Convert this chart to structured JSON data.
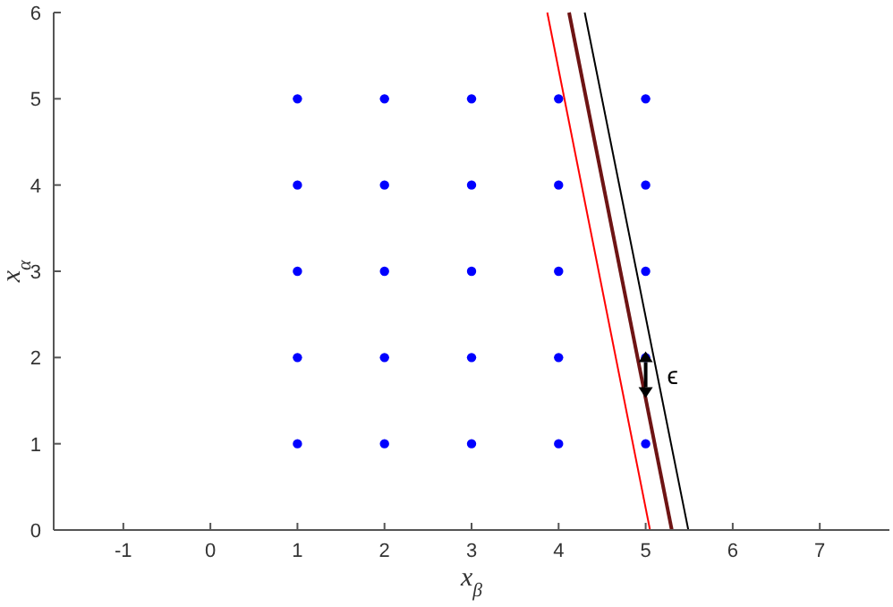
{
  "chart_data": {
    "type": "scatter",
    "xlabel": "x$_{β}$",
    "ylabel": "x$_{α}$",
    "xlim": [
      -1.8,
      7.8
    ],
    "ylim": [
      0,
      6
    ],
    "xticks": [
      -1,
      0,
      1,
      2,
      3,
      4,
      5,
      6,
      7
    ],
    "yticks": [
      0,
      1,
      2,
      3,
      4,
      5,
      6
    ],
    "grid": false,
    "marker": "circle",
    "series": [
      {
        "color": "#0000ff",
        "x": [
          1,
          2,
          3,
          4,
          5,
          1,
          2,
          3,
          4,
          5,
          1,
          2,
          3,
          4,
          5,
          1,
          2,
          3,
          4,
          5,
          1,
          2,
          3,
          4,
          5
        ],
        "values": [
          1,
          1,
          1,
          1,
          1,
          2,
          2,
          2,
          2,
          2,
          3,
          3,
          3,
          3,
          3,
          4,
          4,
          4,
          4,
          4,
          5,
          5,
          5,
          5,
          5
        ]
      },
      {
        "type": "line",
        "color": "#ff0000",
        "marker": "none",
        "line_style": "solid",
        "x": [
          5.05,
          3.87
        ],
        "values": [
          0,
          6
        ]
      },
      {
        "type": "line",
        "color": "#6e1414",
        "marker": "none",
        "line_style": "solid",
        "x": [
          5.3,
          4.12
        ],
        "values": [
          0,
          6
        ]
      },
      {
        "type": "line",
        "color": "#000000",
        "marker": "none",
        "line_style": "solid",
        "x": [
          5.49,
          4.3
        ],
        "values": [
          0,
          6
        ]
      }
    ],
    "annotations": [
      {
        "text": "ϵ",
        "x": 5,
        "y": 1.8
      }
    ]
  }
}
